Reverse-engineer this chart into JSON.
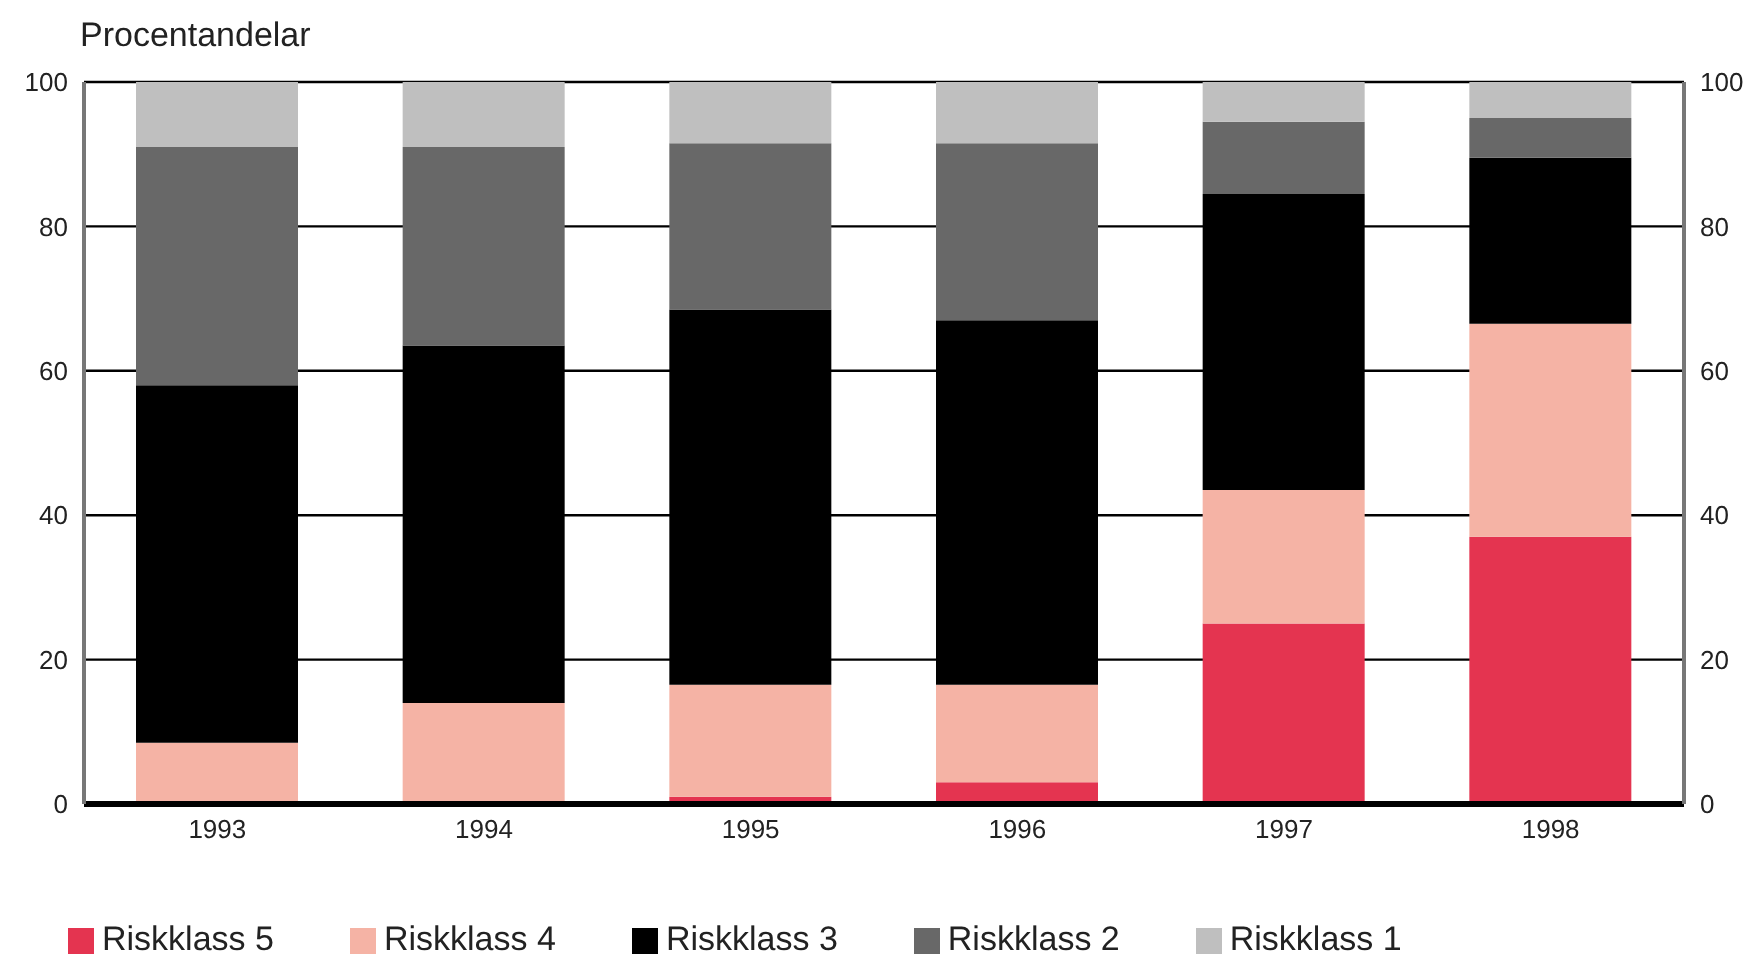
{
  "chart_data": {
    "type": "bar",
    "ylabel": "Procentandelar",
    "categories": [
      "1993",
      "1994",
      "1995",
      "1996",
      "1997",
      "1998"
    ],
    "series": [
      {
        "name": "Riskklass 5",
        "color": "#e43450",
        "values": [
          0,
          0,
          1,
          3,
          25,
          37
        ]
      },
      {
        "name": "Riskklass 4",
        "color": "#f5b3a5",
        "values": [
          8.5,
          14,
          15.5,
          13.5,
          18.5,
          29.5
        ]
      },
      {
        "name": "Riskklass 3",
        "color": "#000000",
        "values": [
          49.5,
          49.5,
          52,
          50.5,
          41,
          23
        ]
      },
      {
        "name": "Riskklass 2",
        "color": "#686868",
        "values": [
          33,
          27.5,
          23,
          24.5,
          10,
          5.5
        ]
      },
      {
        "name": "Riskklass 1",
        "color": "#bfbfbf",
        "values": [
          9,
          9,
          8.5,
          8.5,
          5.5,
          5
        ]
      }
    ],
    "stacked": true,
    "ylim": [
      0,
      100
    ],
    "yticks": [
      0,
      20,
      40,
      60,
      80,
      100
    ],
    "y2lim": [
      0,
      100
    ],
    "y2ticks": [
      0,
      20,
      40,
      60,
      80,
      100
    ],
    "grid": "y",
    "legend": "bottom"
  }
}
